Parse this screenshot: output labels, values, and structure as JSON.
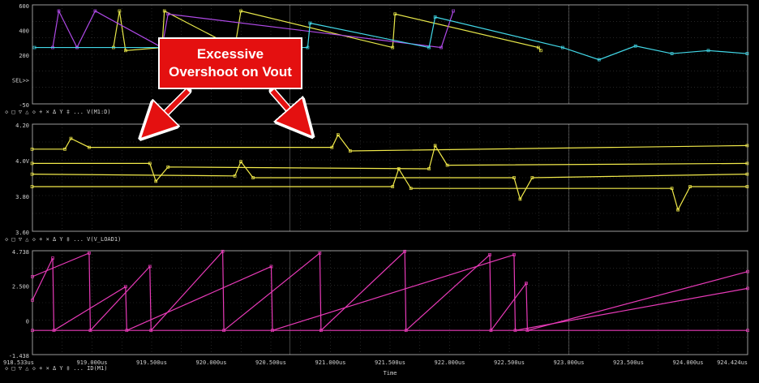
{
  "colors": {
    "background": "#000000",
    "grid": "#3c3c3c",
    "frame": "#9a9a9a",
    "cursor": "#ffffff",
    "callout_fill": "#e41010",
    "callout_text": "#ffffff",
    "trace_yellow": "#f2ea4a",
    "trace_magenta": "#e83ab8"
  },
  "callout": {
    "line1": "Excessive",
    "line2": "Overshoot on Vout"
  },
  "chart_data": [
    {
      "type": "line",
      "panel": "top",
      "ylim": [
        -50,
        600
      ],
      "ytick_labels": [
        "600",
        "400",
        "200",
        "SEL>>",
        "-50"
      ],
      "legend": "◇ □ ▽ △ ◇ + × Δ Y ‡ ...  V(M1:D)",
      "series": [
        {
          "color": "#e8e84a",
          "x": [
            919.2,
            919.25,
            919.3,
            919.6,
            919.62,
            920.2,
            920.25,
            921.5,
            921.52,
            922.7,
            922.72
          ],
          "y": [
            320,
            560,
            300,
            320,
            560,
            320,
            560,
            320,
            540,
            320,
            300
          ]
        },
        {
          "color": "#b04ae8",
          "x": [
            918.7,
            918.75,
            918.9,
            919.05,
            919.6,
            919.65,
            921.9,
            922.0
          ],
          "y": [
            320,
            560,
            320,
            560,
            320,
            540,
            320,
            560
          ]
        },
        {
          "color": "#42d8e8",
          "x": [
            918.55,
            920.8,
            920.82,
            921.8,
            921.85,
            922.9,
            923.2,
            923.5,
            923.8,
            924.1,
            924.42
          ],
          "y": [
            320,
            320,
            480,
            320,
            520,
            320,
            240,
            330,
            280,
            300,
            280
          ]
        }
      ]
    },
    {
      "type": "line",
      "panel": "middle",
      "ylim": [
        3.6,
        4.2
      ],
      "ytick_labels": [
        "4.20",
        "4.0V",
        "3.80",
        "3.60"
      ],
      "legend": "◇ □ ▽ △ ◇ + × Δ Y ‡ ...  V(V_LOAD1)",
      "series": [
        {
          "name": "",
          "x": [
            918.53,
            918.8,
            918.85,
            919.0,
            921.0,
            921.05,
            921.15,
            924.42
          ],
          "y": [
            4.06,
            4.06,
            4.12,
            4.07,
            4.07,
            4.14,
            4.05,
            4.08
          ]
        },
        {
          "name": "",
          "x": [
            918.53,
            919.5,
            919.55,
            919.65,
            921.8,
            921.85,
            921.95,
            924.42
          ],
          "y": [
            3.98,
            3.98,
            3.88,
            3.96,
            3.95,
            4.08,
            3.97,
            3.98
          ]
        },
        {
          "name": "",
          "x": [
            918.53,
            920.2,
            920.25,
            920.35,
            922.5,
            922.55,
            922.65,
            924.42
          ],
          "y": [
            3.92,
            3.91,
            3.99,
            3.9,
            3.9,
            3.78,
            3.9,
            3.92
          ]
        },
        {
          "name": "",
          "x": [
            918.53,
            921.5,
            921.55,
            921.65,
            923.8,
            923.85,
            923.95,
            924.42
          ],
          "y": [
            3.85,
            3.85,
            3.95,
            3.84,
            3.84,
            3.72,
            3.85,
            3.85
          ]
        }
      ]
    },
    {
      "type": "line",
      "panel": "bottom",
      "ylim": [
        -1.438,
        4.738
      ],
      "ytick_labels": [
        "4.738",
        "2.500",
        "0",
        "-1.438"
      ],
      "legend": "◇ □ ▽ △ ◇ + × Δ Y ‡ ...  ID(M1)",
      "xlabel": "Time",
      "x_tick_labels": [
        "918.533us",
        "919.000us",
        "919.500us",
        "920.000us",
        "920.500us",
        "921.000us",
        "921.500us",
        "922.000us",
        "922.500us",
        "923.000us",
        "923.500us",
        "924.000us",
        "924.424us"
      ],
      "series": [
        {
          "name": "",
          "x": [
            918.533,
            919.0,
            919.01,
            919.5,
            919.51,
            920.1,
            920.11,
            920.9,
            920.91,
            921.6,
            921.61,
            922.3,
            922.31,
            922.6,
            922.61,
            924.424
          ],
          "y": [
            3.2,
            4.6,
            0,
            3.8,
            0,
            4.7,
            0,
            4.6,
            0,
            4.7,
            0,
            4.5,
            0,
            2.8,
            0,
            3.5
          ]
        },
        {
          "name": "",
          "x": [
            918.533,
            918.7,
            918.71,
            919.3,
            919.31,
            920.5,
            920.51,
            922.5,
            922.51,
            924.424
          ],
          "y": [
            1.8,
            4.3,
            0,
            2.6,
            0,
            3.8,
            0,
            4.5,
            0,
            2.5
          ]
        },
        {
          "name": "",
          "x": [
            918.533,
            924.424
          ],
          "y": [
            0,
            0
          ]
        }
      ]
    }
  ],
  "ui": {
    "sel_label": "SEL>>"
  }
}
